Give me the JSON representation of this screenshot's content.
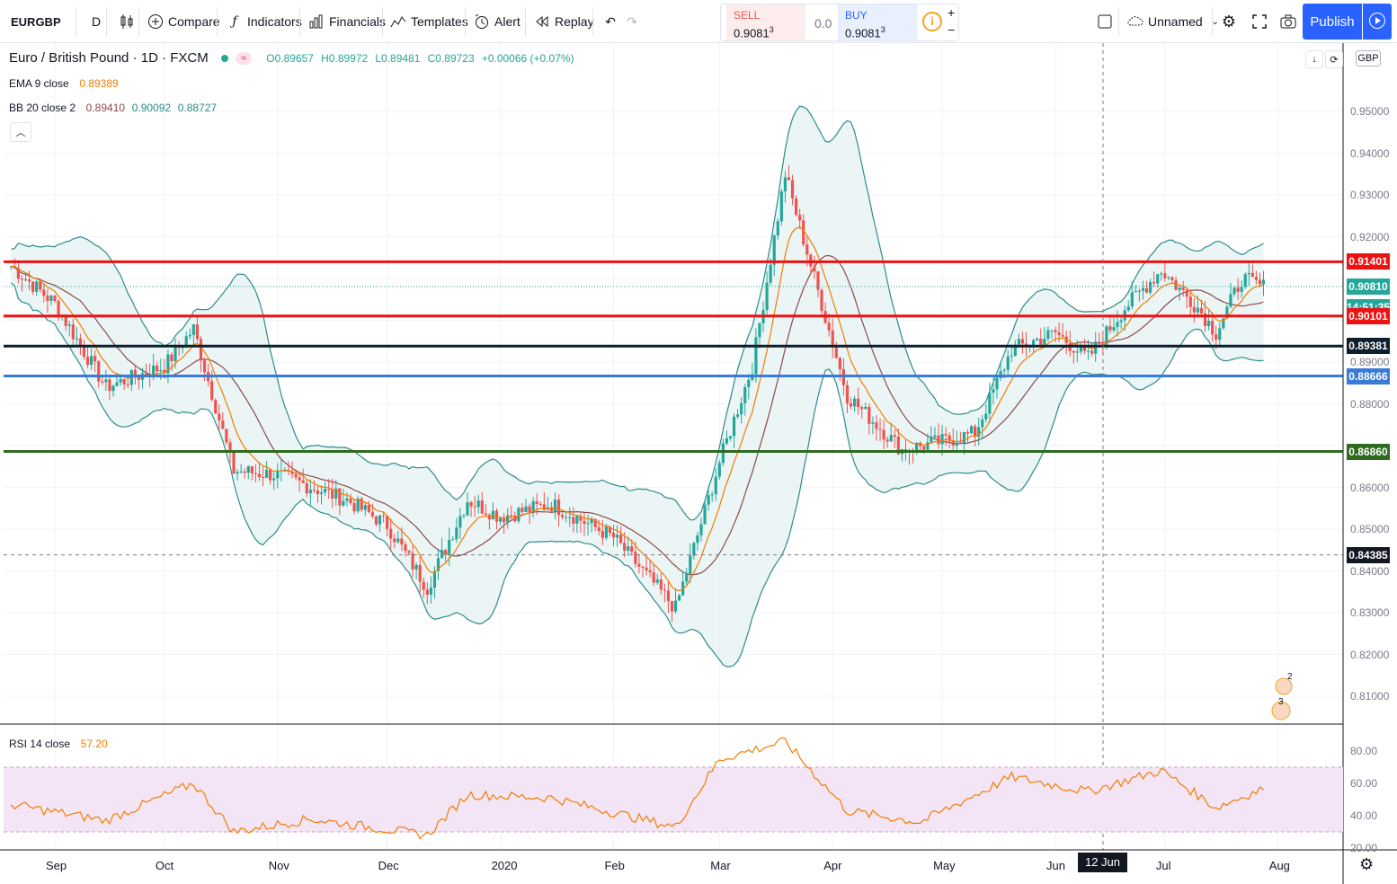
{
  "toolbar": {
    "symbol": "EURGBP",
    "interval": "D",
    "compare": "Compare",
    "indicators": "Indicators",
    "financials": "Financials",
    "templates": "Templates",
    "alert": "Alert",
    "replay": "Replay",
    "sell_label": "SELL",
    "sell_price": "0.9081",
    "sell_sup": "3",
    "spread": "0.0",
    "buy_label": "BUY",
    "buy_price": "0.9081",
    "buy_sup": "3",
    "plus": "+",
    "minus": "−",
    "layout_name": "Unnamed",
    "publish": "Publish"
  },
  "legend": {
    "title": "Euro / British Pound · 1D · FXCM",
    "o": "O0.89657",
    "h": "H0.89972",
    "l": "L0.89481",
    "c": "C0.89723",
    "change": "+0.00066 (+0.07%)",
    "ema_label": "EMA 9 close",
    "ema_value": "0.89389",
    "bb_label": "BB 20 close 2",
    "bb_basis": "0.89410",
    "bb_upper": "0.90092",
    "bb_lower": "0.88727",
    "rsi_label": "RSI 14 close",
    "rsi_value": "57.20",
    "currency": "GBP",
    "badge_symbol": "≈"
  },
  "colors": {
    "up": "#26a69a",
    "down": "#ef5350",
    "ema": "#f57c00",
    "bb_basis": "#8d4a4a",
    "bb_band": "#2e8b8b",
    "bb_fill": "#e6f3f3",
    "rsi_line": "#f57c00",
    "rsi_fill": "#f3e5f5",
    "level_red": "#ee1111",
    "level_black": "#0d1f2d",
    "level_blue": "#3a7bd5",
    "level_green": "#2e6b1f",
    "accent": "#2962ff"
  },
  "price_axis": [
    "0.95000",
    "0.94000",
    "0.93000",
    "0.92000",
    "0.89000",
    "0.88000",
    "0.86000",
    "0.85000",
    "0.84000",
    "0.83000",
    "0.82000",
    "0.81000"
  ],
  "price_labels": [
    {
      "name": "level-091401",
      "text": "0.91401",
      "color": "#ee1111"
    },
    {
      "name": "last-price",
      "text": "0.90810",
      "color": "#26a69a"
    },
    {
      "name": "countdown",
      "text": "14:51:35",
      "color": "#26a69a"
    },
    {
      "name": "level-090101",
      "text": "0.90101",
      "color": "#ee1111"
    },
    {
      "name": "level-089381",
      "text": "0.89381",
      "color": "#0d1f2d"
    },
    {
      "name": "level-088666",
      "text": "0.88666",
      "color": "#3a7bd5"
    },
    {
      "name": "level-086860",
      "text": "0.86860",
      "color": "#2e6b1f"
    },
    {
      "name": "crosshair-price",
      "text": "0.84385",
      "color": "#131722"
    }
  ],
  "rsi_axis": [
    "80.00",
    "60.00",
    "40.00",
    "20.00"
  ],
  "time_axis": [
    "Sep",
    "Oct",
    "Nov",
    "Dec",
    "2020",
    "Feb",
    "Mar",
    "Apr",
    "May",
    "Jun",
    "Jul",
    "Aug"
  ],
  "crosshair_time": "12 Jun '20",
  "events": {
    "a": "2",
    "b": "3"
  },
  "chart_data": {
    "type": "candlestick",
    "symbol": "EURGBP",
    "interval": "1D",
    "ylim": [
      0.805,
      0.955
    ],
    "levels": [
      0.91401,
      0.90101,
      0.89381,
      0.88666,
      0.8686
    ],
    "anchors": [
      {
        "date": "2019-08-20",
        "close": 0.913
      },
      {
        "date": "2019-09-01",
        "close": 0.904
      },
      {
        "date": "2019-09-15",
        "close": 0.884
      },
      {
        "date": "2019-10-01",
        "close": 0.889
      },
      {
        "date": "2019-10-09",
        "close": 0.898
      },
      {
        "date": "2019-10-20",
        "close": 0.864
      },
      {
        "date": "2019-11-01",
        "close": 0.863
      },
      {
        "date": "2019-11-20",
        "close": 0.857
      },
      {
        "date": "2019-12-01",
        "close": 0.851
      },
      {
        "date": "2019-12-12",
        "close": 0.836
      },
      {
        "date": "2019-12-23",
        "close": 0.857
      },
      {
        "date": "2020-01-01",
        "close": 0.853
      },
      {
        "date": "2020-01-15",
        "close": 0.856
      },
      {
        "date": "2020-02-01",
        "close": 0.848
      },
      {
        "date": "2020-02-18",
        "close": 0.831
      },
      {
        "date": "2020-03-01",
        "close": 0.866
      },
      {
        "date": "2020-03-10",
        "close": 0.889
      },
      {
        "date": "2020-03-19",
        "close": 0.935
      },
      {
        "date": "2020-03-28",
        "close": 0.907
      },
      {
        "date": "2020-04-05",
        "close": 0.882
      },
      {
        "date": "2020-04-20",
        "close": 0.869
      },
      {
        "date": "2020-05-01",
        "close": 0.871
      },
      {
        "date": "2020-05-10",
        "close": 0.873
      },
      {
        "date": "2020-05-20",
        "close": 0.893
      },
      {
        "date": "2020-06-01",
        "close": 0.897
      },
      {
        "date": "2020-06-10",
        "close": 0.891
      },
      {
        "date": "2020-06-20",
        "close": 0.903
      },
      {
        "date": "2020-06-30",
        "close": 0.912
      },
      {
        "date": "2020-07-10",
        "close": 0.903
      },
      {
        "date": "2020-07-15",
        "close": 0.897
      },
      {
        "date": "2020-07-22",
        "close": 0.91
      },
      {
        "date": "2020-07-28",
        "close": 0.908
      }
    ],
    "rsi_anchors": [
      {
        "date": "2019-08-20",
        "rsi": 47
      },
      {
        "date": "2019-09-15",
        "rsi": 37
      },
      {
        "date": "2019-10-09",
        "rsi": 60
      },
      {
        "date": "2019-10-20",
        "rsi": 30
      },
      {
        "date": "2019-11-10",
        "rsi": 38
      },
      {
        "date": "2019-12-12",
        "rsi": 28
      },
      {
        "date": "2019-12-23",
        "rsi": 53
      },
      {
        "date": "2020-01-15",
        "rsi": 51
      },
      {
        "date": "2020-02-18",
        "rsi": 33
      },
      {
        "date": "2020-03-01",
        "rsi": 75
      },
      {
        "date": "2020-03-19",
        "rsi": 86
      },
      {
        "date": "2020-04-05",
        "rsi": 43
      },
      {
        "date": "2020-04-25",
        "rsi": 36
      },
      {
        "date": "2020-05-20",
        "rsi": 64
      },
      {
        "date": "2020-06-10",
        "rsi": 55
      },
      {
        "date": "2020-06-30",
        "rsi": 68
      },
      {
        "date": "2020-07-15",
        "rsi": 45
      },
      {
        "date": "2020-07-28",
        "rsi": 57
      }
    ]
  }
}
